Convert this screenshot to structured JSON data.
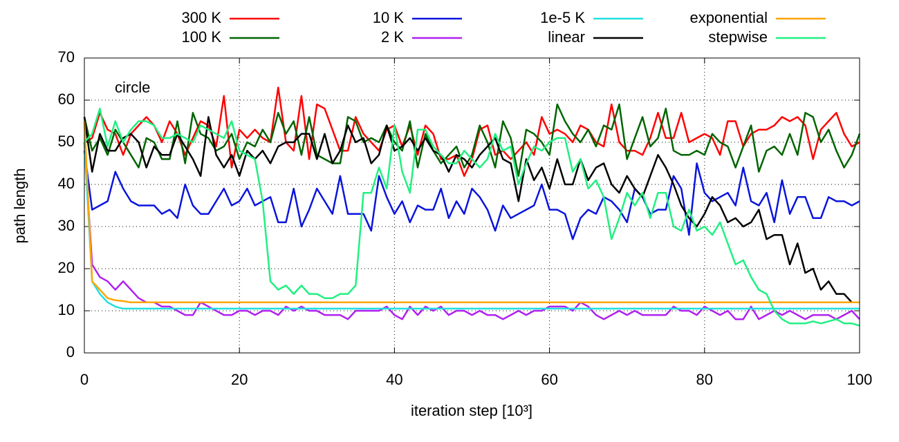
{
  "chart_data": {
    "type": "line",
    "x_label": "iteration step [10³]",
    "y_label": "path length",
    "annotation": "circle",
    "xlim": [
      0,
      100
    ],
    "xticks": [
      0,
      20,
      40,
      60,
      80,
      100
    ],
    "ylim": [
      0,
      70
    ],
    "yticks": [
      0,
      10,
      20,
      30,
      40,
      50,
      60,
      70
    ],
    "grid": true,
    "x": [
      0,
      1,
      2,
      3,
      4,
      5,
      6,
      7,
      8,
      9,
      10,
      11,
      12,
      13,
      14,
      15,
      16,
      17,
      18,
      19,
      20,
      21,
      22,
      23,
      24,
      25,
      26,
      27,
      28,
      29,
      30,
      31,
      32,
      33,
      34,
      35,
      36,
      37,
      38,
      39,
      40,
      41,
      42,
      43,
      44,
      45,
      46,
      47,
      48,
      49,
      50,
      51,
      52,
      53,
      54,
      55,
      56,
      57,
      58,
      59,
      60,
      61,
      62,
      63,
      64,
      65,
      66,
      67,
      68,
      69,
      70,
      71,
      72,
      73,
      74,
      75,
      76,
      77,
      78,
      79,
      80,
      81,
      82,
      83,
      84,
      85,
      86,
      87,
      88,
      89,
      90,
      91,
      92,
      93,
      94,
      95,
      96,
      97,
      98,
      99,
      100
    ],
    "series": [
      {
        "name": "300 K",
        "color": "#ff0000",
        "values": [
          50,
          51,
          57,
          53,
          52,
          47,
          52,
          54,
          56,
          54,
          50,
          55,
          52,
          47,
          51,
          55,
          54,
          49,
          61,
          44,
          53,
          51,
          53,
          51,
          50,
          63,
          50,
          48,
          61,
          46,
          59,
          58,
          53,
          48,
          48,
          56,
          52,
          50,
          48,
          53,
          54,
          49,
          54,
          47,
          54,
          52,
          46,
          46,
          47,
          42,
          46,
          53,
          54,
          47,
          48,
          46,
          48,
          50,
          47,
          56,
          52,
          53,
          52,
          50,
          54,
          53,
          50,
          49,
          59,
          50,
          48,
          48,
          47,
          51,
          57,
          51,
          51,
          57,
          50,
          51,
          52,
          51,
          47,
          55,
          55,
          49,
          52,
          53,
          53,
          54,
          56,
          55,
          56,
          54,
          46,
          53,
          55,
          57,
          52,
          49,
          50
        ]
      },
      {
        "name": "100 K",
        "color": "#006400",
        "values": [
          56,
          48,
          51,
          47,
          53,
          50,
          47,
          44,
          51,
          50,
          46,
          46,
          55,
          45,
          57,
          52,
          51,
          48,
          49,
          52,
          46,
          50,
          49,
          53,
          50,
          57,
          52,
          55,
          47,
          56,
          47,
          46,
          45,
          45,
          56,
          55,
          50,
          51,
          50,
          54,
          50,
          48,
          55,
          44,
          52,
          48,
          45,
          47,
          49,
          44,
          47,
          54,
          50,
          44,
          55,
          51,
          42,
          53,
          52,
          50,
          47,
          59,
          55,
          52,
          50,
          53,
          49,
          54,
          53,
          59,
          46,
          51,
          56,
          49,
          51,
          58,
          48,
          47,
          47,
          48,
          47,
          52,
          50,
          49,
          44,
          49,
          54,
          43,
          48,
          49,
          47,
          52,
          47,
          57,
          56,
          50,
          53,
          48,
          44,
          47,
          52
        ]
      },
      {
        "name": "10 K",
        "color": "#0a14dc",
        "values": [
          48,
          34,
          35,
          36,
          43,
          39,
          36,
          35,
          35,
          35,
          33,
          34,
          32,
          40,
          35,
          33,
          33,
          36,
          39,
          35,
          36,
          39,
          35,
          36,
          37,
          31,
          31,
          39,
          30,
          34,
          39,
          36,
          33,
          42,
          33,
          33,
          33,
          29,
          42,
          37,
          33,
          36,
          31,
          35,
          34,
          34,
          39,
          32,
          36,
          33,
          39,
          37,
          34,
          29,
          35,
          32,
          33,
          34,
          35,
          40,
          34,
          34,
          33,
          27,
          32,
          34,
          33,
          37,
          36,
          34,
          31,
          39,
          37,
          33,
          34,
          34,
          42,
          39,
          28,
          45,
          38,
          36,
          37,
          38,
          35,
          44,
          36,
          35,
          38,
          31,
          41,
          33,
          37,
          37,
          32,
          32,
          37,
          36,
          36,
          35,
          36
        ]
      },
      {
        "name": "2 K",
        "color": "#b020f0",
        "values": [
          50,
          21,
          18,
          17,
          15,
          17,
          15,
          13,
          12,
          12,
          11,
          11,
          10,
          9,
          9,
          12,
          11,
          10,
          9,
          9,
          10,
          10,
          9,
          10,
          10,
          9,
          11,
          10,
          11,
          10,
          10,
          9,
          9,
          9,
          8,
          10,
          10,
          10,
          10,
          11,
          9,
          8,
          11,
          9,
          11,
          10,
          11,
          9,
          10,
          10,
          9,
          10,
          9,
          9,
          8,
          9,
          10,
          9,
          10,
          10,
          11,
          11,
          11,
          10,
          12,
          11,
          9,
          8,
          9,
          10,
          9,
          10,
          9,
          9,
          9,
          9,
          11,
          10,
          10,
          9,
          11,
          10,
          9,
          10,
          8,
          8,
          11,
          8,
          9,
          10,
          9,
          10,
          9,
          8,
          9,
          9,
          9,
          8,
          9,
          10,
          8
        ]
      },
      {
        "name": "1e-5 K",
        "color": "#20e0e0",
        "values": [
          50,
          17,
          14,
          12,
          11,
          10.5,
          10.5,
          10.5,
          10.5,
          10.5,
          10.5,
          10.5,
          10.5,
          10.5,
          10.5,
          10.5,
          10.5,
          10.5,
          10.5,
          10.5,
          10.5,
          10.5,
          10.5,
          10.5,
          10.5,
          10.5,
          10.5,
          10.5,
          10.5,
          10.5,
          10.5,
          10.5,
          10.5,
          10.5,
          10.5,
          10.5,
          10.5,
          10.5,
          10.5,
          10.5,
          10.5,
          10.5,
          10.5,
          10.5,
          10.5,
          10.5,
          10.5,
          10.5,
          10.5,
          10.5,
          10.5,
          10.5,
          10.5,
          10.5,
          10.5,
          10.5,
          10.5,
          10.5,
          10.5,
          10.5,
          10.5,
          10.5,
          10.5,
          10.5,
          10.5,
          10.5,
          10.5,
          10.5,
          10.5,
          10.5,
          10.5,
          10.5,
          10.5,
          10.5,
          10.5,
          10.5,
          10.5,
          10.5,
          10.5,
          10.5,
          10.5,
          10.5,
          10.5,
          10.5,
          10.5,
          10.5,
          10.5,
          10.5,
          10.5,
          10.5,
          10.5,
          10.5,
          10.5,
          10.5,
          10.5,
          10.5,
          10.5,
          10.5,
          10.5,
          10.5,
          10.5
        ]
      },
      {
        "name": "linear",
        "color": "#000000",
        "values": [
          56,
          43,
          52,
          48,
          48,
          51,
          52,
          50,
          44,
          49,
          47,
          47,
          52,
          49,
          46,
          42,
          56,
          47,
          44,
          47,
          42,
          48,
          46,
          48,
          45,
          49,
          50,
          50,
          52,
          52,
          46,
          52,
          45,
          48,
          54,
          50,
          51,
          45,
          47,
          54,
          48,
          49,
          51,
          48,
          51,
          48,
          47,
          43,
          47,
          46,
          44,
          47,
          49,
          51,
          46,
          45,
          36,
          46,
          41,
          44,
          39,
          46,
          40,
          40,
          46,
          41,
          44,
          45,
          40,
          38,
          42,
          39,
          37,
          42,
          47,
          44,
          40,
          35,
          32,
          30,
          33,
          37,
          35,
          31,
          32,
          30,
          31,
          34,
          27,
          28,
          28,
          21,
          26,
          19,
          20,
          15,
          17,
          14,
          14,
          12,
          12
        ]
      },
      {
        "name": "exponential",
        "color": "#ffa500",
        "values": [
          55,
          17,
          15,
          13,
          12.5,
          12.3,
          12,
          12,
          12,
          12,
          12,
          12,
          12,
          12,
          12,
          12,
          12,
          12,
          12,
          12,
          12,
          12,
          12,
          12,
          12,
          12,
          12,
          12,
          12,
          12,
          12,
          12,
          12,
          12,
          12,
          12,
          12,
          12,
          12,
          12,
          12,
          12,
          12,
          12,
          12,
          12,
          12,
          12,
          12,
          12,
          12,
          12,
          12,
          12,
          12,
          12,
          12,
          12,
          12,
          12,
          12,
          12,
          12,
          12,
          12,
          12,
          12,
          12,
          12,
          12,
          12,
          12,
          12,
          12,
          12,
          12,
          12,
          12,
          12,
          12,
          12,
          12,
          12,
          12,
          12,
          12,
          12,
          12,
          12,
          12,
          12,
          12,
          12,
          12,
          12,
          12,
          12,
          12,
          12,
          12,
          12
        ]
      },
      {
        "name": "stepwise",
        "color": "#20f080",
        "values": [
          50,
          52,
          58,
          49,
          55,
          50,
          53,
          55,
          55,
          54,
          51,
          51,
          52,
          51,
          50,
          54,
          53,
          52,
          51,
          55,
          48,
          47,
          46,
          36,
          17,
          15,
          16,
          14,
          16,
          14,
          14,
          13,
          13,
          14,
          14,
          16,
          38,
          38,
          44,
          39,
          54,
          43,
          38,
          53,
          53,
          49,
          47,
          45,
          45,
          48,
          46,
          44,
          46,
          52,
          48,
          49,
          40,
          45,
          49,
          48,
          50,
          51,
          51,
          43,
          46,
          39,
          41,
          37,
          27,
          32,
          38,
          35,
          38,
          32,
          38,
          38,
          30,
          29,
          34,
          29,
          30,
          28,
          31,
          26,
          21,
          22,
          18,
          15,
          14,
          10,
          8,
          7,
          7,
          7,
          7.5,
          7,
          7.5,
          8,
          7,
          7,
          6.5
        ]
      }
    ]
  }
}
